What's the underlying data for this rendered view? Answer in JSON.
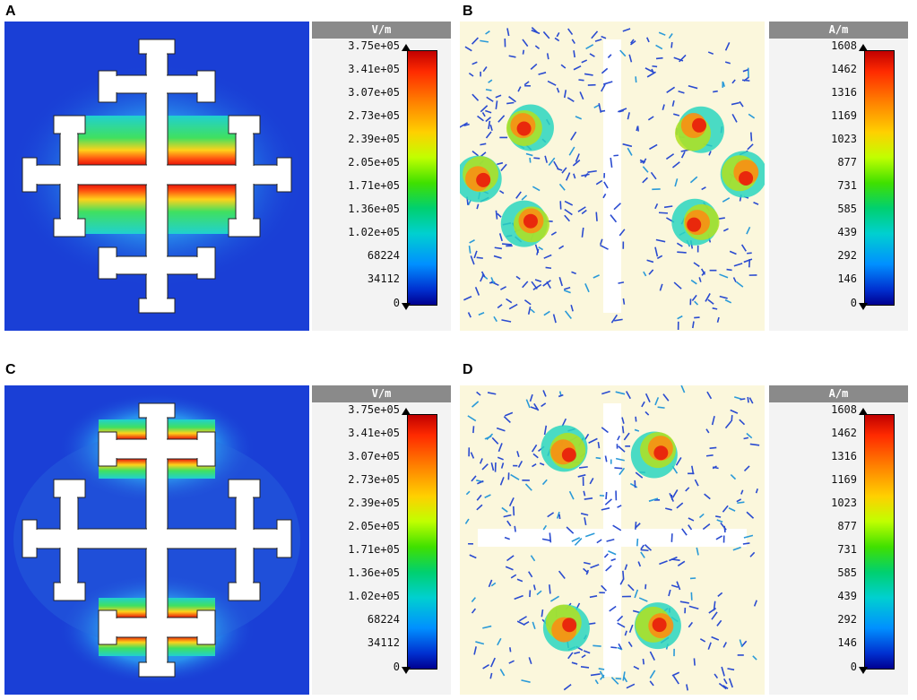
{
  "panels": [
    {
      "letter": "A",
      "type": "E-field",
      "unit": "V/m",
      "ticks": [
        "3.75e+05",
        "3.41e+05",
        "3.07e+05",
        "2.73e+05",
        "2.39e+05",
        "2.05e+05",
        "1.71e+05",
        "1.36e+05",
        "1.02e+05",
        "68224",
        "34112",
        "0"
      ]
    },
    {
      "letter": "B",
      "type": "H-field",
      "unit": "A/m",
      "ticks": [
        "1608",
        "1462",
        "1316",
        "1169",
        "1023",
        "877",
        "731",
        "585",
        "439",
        "292",
        "146",
        "0"
      ]
    },
    {
      "letter": "C",
      "type": "E-field",
      "unit": "V/m",
      "ticks": [
        "3.75e+05",
        "3.41e+05",
        "3.07e+05",
        "2.73e+05",
        "2.39e+05",
        "2.05e+05",
        "1.71e+05",
        "1.36e+05",
        "1.02e+05",
        "68224",
        "34112",
        "0"
      ]
    },
    {
      "letter": "D",
      "type": "H-field",
      "unit": "A/m",
      "ticks": [
        "1608",
        "1462",
        "1316",
        "1169",
        "1023",
        "877",
        "731",
        "585",
        "439",
        "292",
        "146",
        "0"
      ]
    }
  ],
  "colors": {
    "e_background": "#1a3fd6",
    "h_background": "#fbf7dc",
    "metal": "#ffffff",
    "hot": "#e8140a",
    "warm": "#ffd21a",
    "mid": "#2bd67a",
    "cool": "#2ad6d6",
    "arrow_low": "#2a4bd0"
  }
}
